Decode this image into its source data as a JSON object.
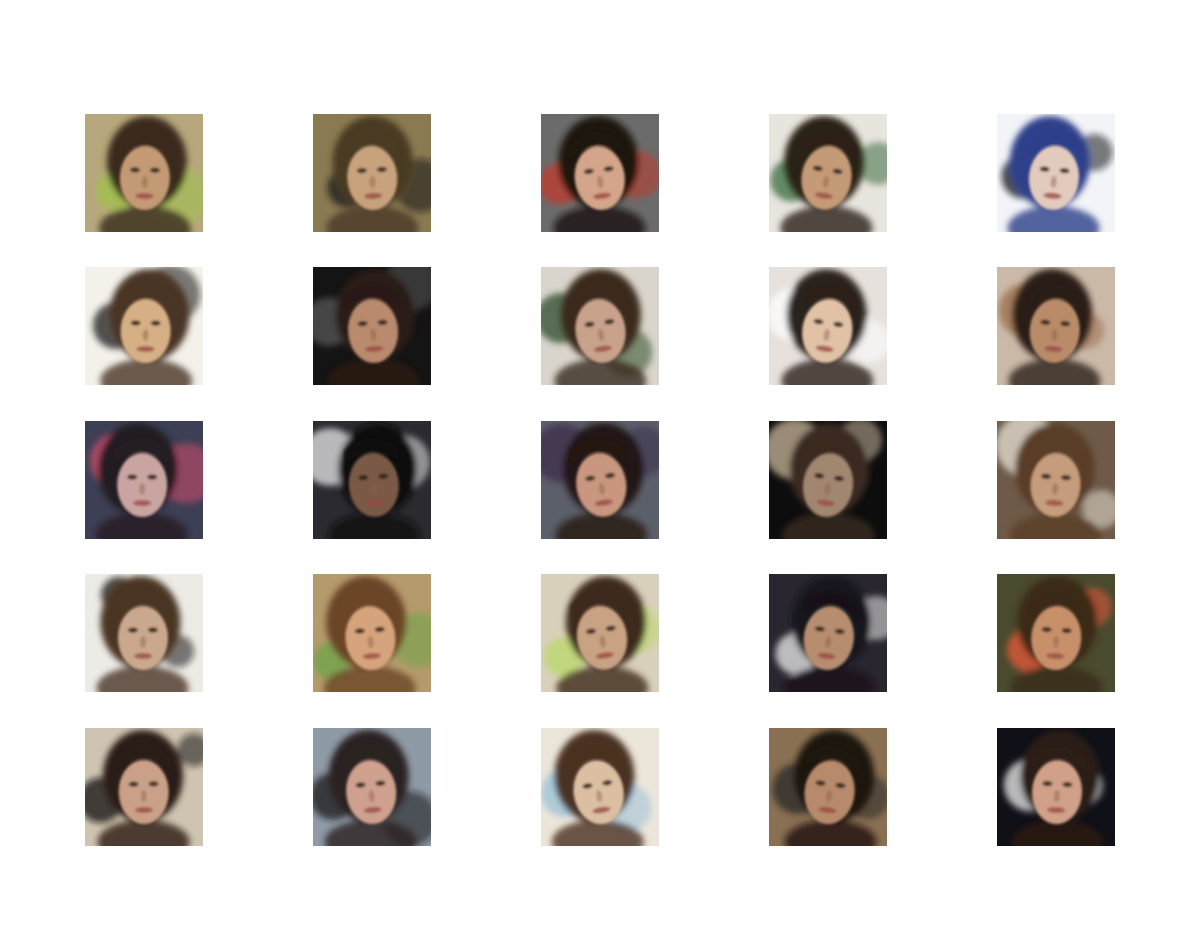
{
  "figure": {
    "rows": 5,
    "columns": 5,
    "samples": [
      {
        "background": "#b7a77c",
        "hair": "#3a2a1c",
        "skin": "#c49a74",
        "accent": "#9fc24a"
      },
      {
        "background": "#8a7a52",
        "hair": "#4a3a24",
        "skin": "#c8a27c",
        "accent": "#1a1a1a"
      },
      {
        "background": "#6b6b6b",
        "hair": "#1c1410",
        "skin": "#d4a58a",
        "accent": "#c0392b"
      },
      {
        "background": "#e8e4de",
        "hair": "#2b2019",
        "skin": "#c59a77",
        "accent": "#3b6b3f"
      },
      {
        "background": "#f2f4f8",
        "hair": "#2d3f8a",
        "skin": "#e2cbbd",
        "accent": "#111111"
      },
      {
        "background": "#f3f1ea",
        "hair": "#4a3426",
        "skin": "#d6b084",
        "accent": "#1a1a1a"
      },
      {
        "background": "#141414",
        "hair": "#2a1a14",
        "skin": "#b98a6e",
        "accent": "#555555"
      },
      {
        "background": "#dad5cc",
        "hair": "#3a2a1e",
        "skin": "#c9a28b",
        "accent": "#2f4a2c"
      },
      {
        "background": "#e6e1dc",
        "hair": "#2c201a",
        "skin": "#e1c2a6",
        "accent": "#ffffff"
      },
      {
        "background": "#cbb9a8",
        "hair": "#2a1e18",
        "skin": "#b98b69",
        "accent": "#9a6c4a"
      },
      {
        "background": "#3d3f55",
        "hair": "#241c22",
        "skin": "#caa4a0",
        "accent": "#d14d6b"
      },
      {
        "background": "#2a2a30",
        "hair": "#0e0c0c",
        "skin": "#7a5a46",
        "accent": "#e8e8ec"
      },
      {
        "background": "#5b5f6a",
        "hair": "#241812",
        "skin": "#c9977f",
        "accent": "#3d2f4a"
      },
      {
        "background": "#0d0d0d",
        "hair": "#3a2a20",
        "skin": "#a18670",
        "accent": "#c9b79a"
      },
      {
        "background": "#6e5a48",
        "hair": "#5a3e28",
        "skin": "#c59c7c",
        "accent": "#e7e2d6"
      },
      {
        "background": "#ecebe6",
        "hair": "#4a3424",
        "skin": "#c9a88e",
        "accent": "#111111"
      },
      {
        "background": "#b59a6c",
        "hair": "#6a4526",
        "skin": "#d6a47c",
        "accent": "#6ea648"
      },
      {
        "background": "#d9d0bc",
        "hair": "#3e2a1c",
        "skin": "#c9a284",
        "accent": "#b9d86a"
      },
      {
        "background": "#2a2630",
        "hair": "#15121a",
        "skin": "#b78d6f",
        "accent": "#ececec"
      },
      {
        "background": "#4a4a2e",
        "hair": "#3a2a18",
        "skin": "#c8906a",
        "accent": "#e55a3a"
      },
      {
        "background": "#cfc4b2",
        "hair": "#2a1c14",
        "skin": "#caa188",
        "accent": "#111111"
      },
      {
        "background": "#8e9aa6",
        "hair": "#2a2220",
        "skin": "#cfa08e",
        "accent": "#1a1a1a"
      },
      {
        "background": "#ece6da",
        "hair": "#4a3020",
        "skin": "#dcbfa2",
        "accent": "#9ac0d8"
      },
      {
        "background": "#8a7052",
        "hair": "#1e1410",
        "skin": "#b88a6c",
        "accent": "#2a2a2a"
      },
      {
        "background": "#101018",
        "hair": "#2c1c14",
        "skin": "#d0a088",
        "accent": "#f0f0f0"
      }
    ]
  }
}
